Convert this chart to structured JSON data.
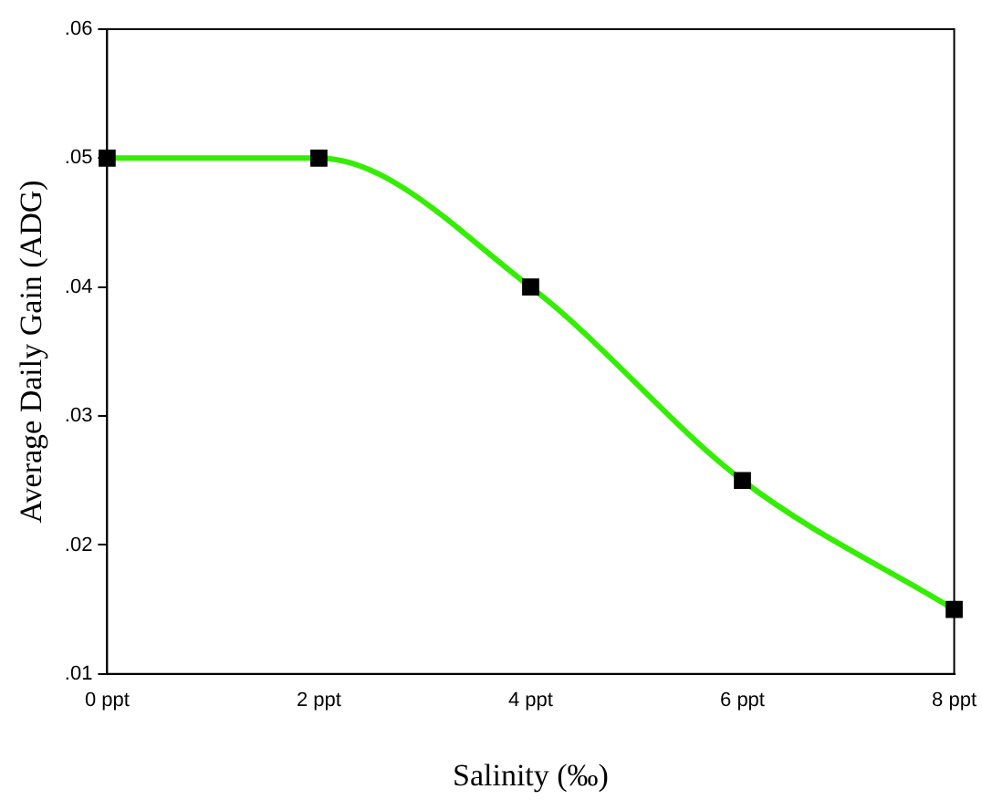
{
  "chart_data": {
    "type": "line",
    "xlabel": "Salinity (‰)",
    "ylabel": "Average Daily Gain (ADG)",
    "categories": [
      "0 ppt",
      "2 ppt",
      "4 ppt",
      "6 ppt",
      "8 ppt"
    ],
    "series": [
      {
        "color": "#33ee00",
        "values": [
          0.05,
          0.05,
          0.04,
          0.025,
          0.015
        ]
      }
    ],
    "ylim": [
      0.01,
      0.06
    ],
    "yticks": [
      {
        "value": 0.01,
        "label": ".01"
      },
      {
        "value": 0.02,
        "label": ".02"
      },
      {
        "value": 0.03,
        "label": ".03"
      },
      {
        "value": 0.04,
        "label": ".04"
      },
      {
        "value": 0.05,
        "label": ".05"
      },
      {
        "value": 0.06,
        "label": ".06"
      }
    ],
    "grid": false,
    "legend": false,
    "marker": "square",
    "line_style": "solid"
  }
}
